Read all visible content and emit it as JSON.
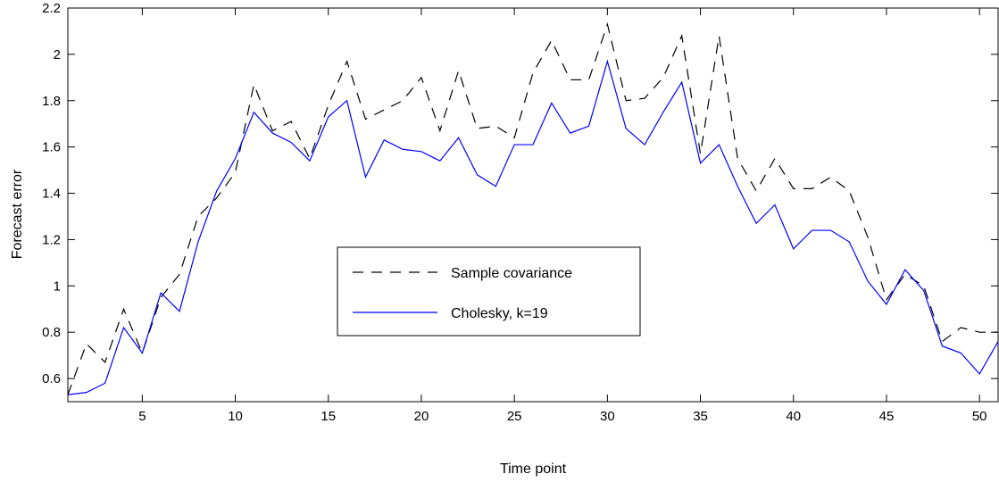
{
  "chart_data": {
    "type": "line",
    "title": "",
    "xlabel": "Time point",
    "ylabel": "Forecast error",
    "xlim": [
      1,
      51
    ],
    "ylim": [
      0.5,
      2.2
    ],
    "xticks": [
      5,
      10,
      15,
      20,
      25,
      30,
      35,
      40,
      45,
      50
    ],
    "yticks": [
      0.6,
      0.8,
      1,
      1.2,
      1.4,
      1.6,
      1.8,
      2,
      2.2
    ],
    "grid": false,
    "legend_position": "center",
    "x": [
      1,
      2,
      3,
      4,
      5,
      6,
      7,
      8,
      9,
      10,
      11,
      12,
      13,
      14,
      15,
      16,
      17,
      18,
      19,
      20,
      21,
      22,
      23,
      24,
      25,
      26,
      27,
      28,
      29,
      30,
      31,
      32,
      33,
      34,
      35,
      36,
      37,
      38,
      39,
      40,
      41,
      42,
      43,
      44,
      45,
      46,
      47,
      48,
      49,
      50,
      51
    ],
    "series": [
      {
        "name": "Sample covariance",
        "color": "#000000",
        "style": "dashed",
        "values": [
          0.53,
          0.75,
          0.67,
          0.9,
          0.71,
          0.95,
          1.05,
          1.3,
          1.38,
          1.49,
          1.87,
          1.67,
          1.71,
          1.55,
          1.78,
          1.97,
          1.72,
          1.76,
          1.8,
          1.9,
          1.67,
          1.93,
          1.68,
          1.69,
          1.64,
          1.92,
          2.06,
          1.89,
          1.89,
          2.13,
          1.8,
          1.81,
          1.9,
          2.08,
          1.57,
          2.08,
          1.55,
          1.41,
          1.55,
          1.42,
          1.42,
          1.47,
          1.41,
          1.21,
          0.94,
          1.05,
          1.0,
          0.76,
          0.82,
          0.8,
          0.8
        ]
      },
      {
        "name": "Cholesky, k=19",
        "color": "#0000ff",
        "style": "solid",
        "values": [
          0.53,
          0.54,
          0.58,
          0.82,
          0.71,
          0.97,
          0.89,
          1.19,
          1.41,
          1.55,
          1.75,
          1.66,
          1.62,
          1.54,
          1.73,
          1.8,
          1.47,
          1.63,
          1.59,
          1.58,
          1.54,
          1.64,
          1.48,
          1.43,
          1.61,
          1.61,
          1.79,
          1.66,
          1.69,
          1.97,
          1.68,
          1.61,
          1.75,
          1.88,
          1.53,
          1.61,
          1.43,
          1.27,
          1.35,
          1.16,
          1.24,
          1.24,
          1.19,
          1.02,
          0.92,
          1.07,
          0.98,
          0.74,
          0.71,
          0.62,
          0.76
        ]
      }
    ]
  }
}
